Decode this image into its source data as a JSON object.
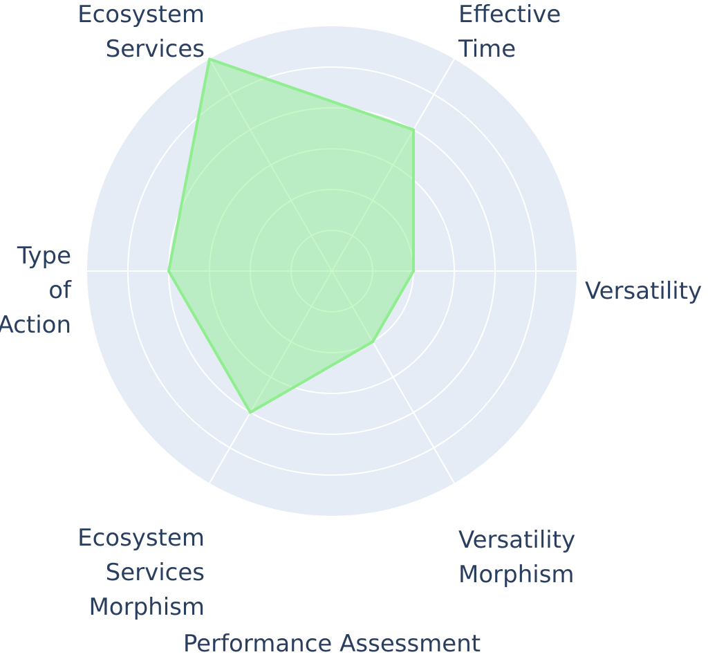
{
  "chart_data": {
    "type": "radar",
    "title": "Performance Assessment",
    "axes": [
      {
        "label_lines": [
          "Versatility"
        ]
      },
      {
        "label_lines": [
          "Effective",
          "Time"
        ]
      },
      {
        "label_lines": [
          "Ecosystem",
          "Services"
        ]
      },
      {
        "label_lines": [
          "Type",
          "of",
          "Action"
        ]
      },
      {
        "label_lines": [
          "Ecosystem",
          "Services",
          "Morphism"
        ]
      },
      {
        "label_lines": [
          "Versatility",
          "Morphism"
        ]
      }
    ],
    "series": [
      {
        "values": [
          2,
          4,
          6,
          4,
          4,
          2
        ]
      }
    ],
    "range": [
      0,
      6
    ],
    "rings": [
      1,
      2,
      3,
      4,
      5,
      6
    ],
    "start_angle_deg": 0,
    "direction": "counterclockwise",
    "colors": {
      "background": "#e5ecf6",
      "grid": "#ffffff",
      "fill": "#90ee90",
      "fill_opacity": 0.5,
      "line": "#90ee90",
      "text": "#2a3f5f"
    }
  }
}
